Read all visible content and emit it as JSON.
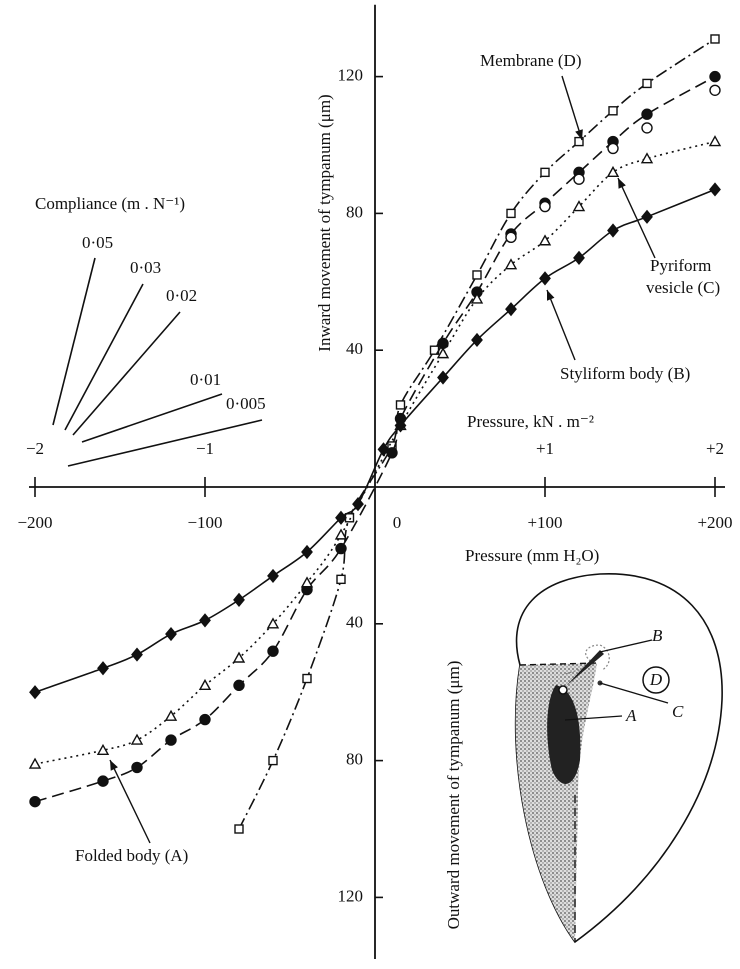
{
  "chart_data": {
    "type": "scatter-line",
    "xlabel": "Pressure (mm H₂O)",
    "x2label": "Pressure, kN . m⁻²",
    "ylabel": "Inward movement of tympanum (μm)",
    "ylabel_lower": "Outward movement of tympanum (μm)",
    "xlim": [
      -200,
      200
    ],
    "ylim": [
      -138,
      141
    ],
    "x2lim": [
      -2,
      2
    ],
    "xticks": [
      {
        "value": -200,
        "label": "−200"
      },
      {
        "value": -100,
        "label": "−100"
      },
      0,
      {
        "value": 100,
        "label": "+100"
      },
      {
        "value": 200,
        "label": "+200"
      }
    ],
    "x2ticks": [
      {
        "value": -2,
        "label": "−2"
      },
      {
        "value": -1,
        "label": "−1"
      },
      {
        "value": 1,
        "label": "+1"
      },
      {
        "value": 2,
        "label": "+2"
      }
    ],
    "yticks": [
      {
        "value": -120,
        "label": "120"
      },
      {
        "value": -80,
        "label": "80"
      },
      {
        "value": -40,
        "label": "40"
      },
      40,
      80,
      120
    ],
    "series": [
      {
        "name": "Membrane (D)",
        "color": "#111",
        "marker": "square",
        "filled": false,
        "dash": "dash-dot",
        "x": [
          -80,
          -60,
          -40,
          -20,
          -15,
          10,
          15,
          35,
          60,
          80,
          100,
          120,
          140,
          160,
          200
        ],
        "values": [
          -100,
          -80,
          -56,
          -27,
          -9,
          12,
          24,
          40,
          62,
          80,
          92,
          101,
          110,
          118,
          131
        ]
      },
      {
        "name": "Folded body (A)",
        "color": "#111",
        "marker": "circle",
        "filled": true,
        "dash": "dashed",
        "x": [
          -200,
          -160,
          -140,
          -120,
          -100,
          -80,
          -60,
          -40,
          -20,
          10,
          15,
          40,
          60,
          80,
          100,
          120,
          140,
          160,
          200
        ],
        "values": [
          -92,
          -86,
          -82,
          -74,
          -68,
          -58,
          -48,
          -30,
          -18,
          10,
          20,
          42,
          57,
          74,
          83,
          92,
          101,
          109,
          120
        ]
      },
      {
        "color": "#111",
        "marker": "circle",
        "filled": false,
        "dash": "none",
        "x": [
          80,
          100,
          120,
          140,
          160,
          200
        ],
        "values": [
          73,
          82,
          90,
          99,
          105,
          116
        ]
      },
      {
        "name": "Pyriform vesicle (C)",
        "color": "#111",
        "marker": "triangle",
        "filled": false,
        "dash": "dotted",
        "x": [
          -200,
          -160,
          -140,
          -120,
          -100,
          -80,
          -60,
          -40,
          -20,
          15,
          40,
          60,
          80,
          100,
          120,
          140,
          160,
          200
        ],
        "values": [
          -81,
          -77,
          -74,
          -67,
          -58,
          -50,
          -40,
          -28,
          -14,
          18,
          39,
          55,
          65,
          72,
          82,
          92,
          96,
          101
        ]
      },
      {
        "name": "Styliform body (B)",
        "color": "#111",
        "marker": "diamond",
        "filled": true,
        "dash": "solid",
        "x": [
          -200,
          -160,
          -140,
          -120,
          -100,
          -80,
          -60,
          -40,
          -20,
          -10,
          5,
          15,
          40,
          60,
          80,
          100,
          120,
          140,
          160,
          200
        ],
        "values": [
          -60,
          -53,
          -49,
          -43,
          -39,
          -33,
          -26,
          -19,
          -9,
          -5,
          11,
          18,
          32,
          43,
          52,
          61,
          67,
          75,
          79,
          87
        ]
      }
    ]
  },
  "compliance": {
    "title": "Compliance (m . N⁻¹)",
    "labels": [
      "0·05",
      "0·03",
      "0·02",
      "0·01",
      "0·005"
    ]
  },
  "inset": {
    "labels": [
      "B",
      "C",
      "D",
      "A"
    ]
  }
}
